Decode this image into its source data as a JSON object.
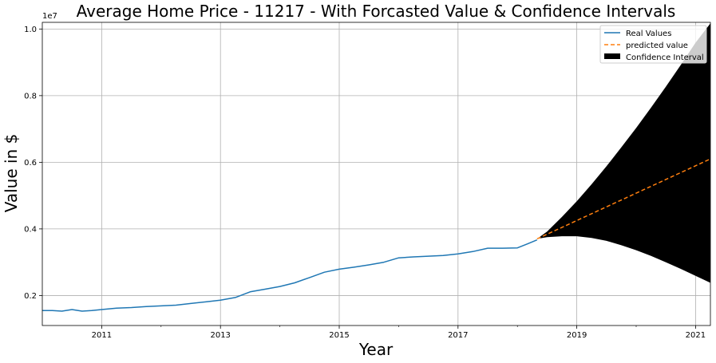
{
  "chart_data": {
    "type": "line",
    "title": "Average Home Price - 11217 - With Forcasted Value & Confidence Intervals",
    "xlabel": "Year",
    "ylabel": "Value in $",
    "y_offset_label": "1e7",
    "xlim": [
      2010.0,
      2021.25
    ],
    "ylim": [
      1100000,
      10200000
    ],
    "x_ticks": [
      2011,
      2013,
      2015,
      2017,
      2019,
      2021
    ],
    "x_tick_labels": [
      "2011",
      "2013",
      "2015",
      "2017",
      "2019",
      "2021"
    ],
    "x_minor_ticks": [
      2012,
      2014,
      2016,
      2018,
      2020
    ],
    "y_ticks": [
      2000000,
      4000000,
      6000000,
      8000000,
      10000000
    ],
    "y_tick_labels": [
      "0.2",
      "0.4",
      "0.6",
      "0.8",
      "1.0"
    ],
    "grid": true,
    "legend_position": "top-right",
    "series": [
      {
        "name": "Real Values",
        "color": "#1f77b4",
        "style": "solid",
        "x": [
          2010.0,
          2010.17,
          2010.33,
          2010.5,
          2010.67,
          2010.83,
          2011.0,
          2011.25,
          2011.5,
          2011.75,
          2012.0,
          2012.25,
          2012.5,
          2012.75,
          2013.0,
          2013.25,
          2013.5,
          2013.75,
          2014.0,
          2014.25,
          2014.5,
          2014.75,
          2015.0,
          2015.25,
          2015.5,
          2015.75,
          2016.0,
          2016.25,
          2016.5,
          2016.75,
          2017.0,
          2017.25,
          2017.5,
          2017.75,
          2018.0,
          2018.17,
          2018.33
        ],
        "values": [
          1550000,
          1550000,
          1530000,
          1580000,
          1530000,
          1550000,
          1580000,
          1620000,
          1640000,
          1670000,
          1690000,
          1710000,
          1760000,
          1810000,
          1860000,
          1940000,
          2110000,
          2190000,
          2270000,
          2380000,
          2540000,
          2700000,
          2790000,
          2850000,
          2920000,
          3000000,
          3130000,
          3160000,
          3180000,
          3200000,
          3250000,
          3320000,
          3420000,
          3420000,
          3430000,
          3550000,
          3670000
        ]
      },
      {
        "name": "predicted value",
        "color": "#ff7f0e",
        "style": "dashed",
        "x": [
          2018.33,
          2021.25
        ],
        "values": [
          3700000,
          6100000
        ]
      }
    ],
    "confidence_interval": {
      "name": "Confidence Interval",
      "color": "#000000",
      "x": [
        2018.33,
        2018.5,
        2018.75,
        2019.0,
        2019.25,
        2019.5,
        2019.75,
        2020.0,
        2020.25,
        2020.5,
        2020.75,
        2021.0,
        2021.25
      ],
      "lower": [
        3700000,
        3750000,
        3780000,
        3780000,
        3730000,
        3640000,
        3510000,
        3360000,
        3190000,
        3000000,
        2800000,
        2590000,
        2380000
      ],
      "upper": [
        3700000,
        3920000,
        4360000,
        4830000,
        5340000,
        5880000,
        6450000,
        7030000,
        7640000,
        8270000,
        8920000,
        9590000,
        10170000
      ]
    }
  }
}
